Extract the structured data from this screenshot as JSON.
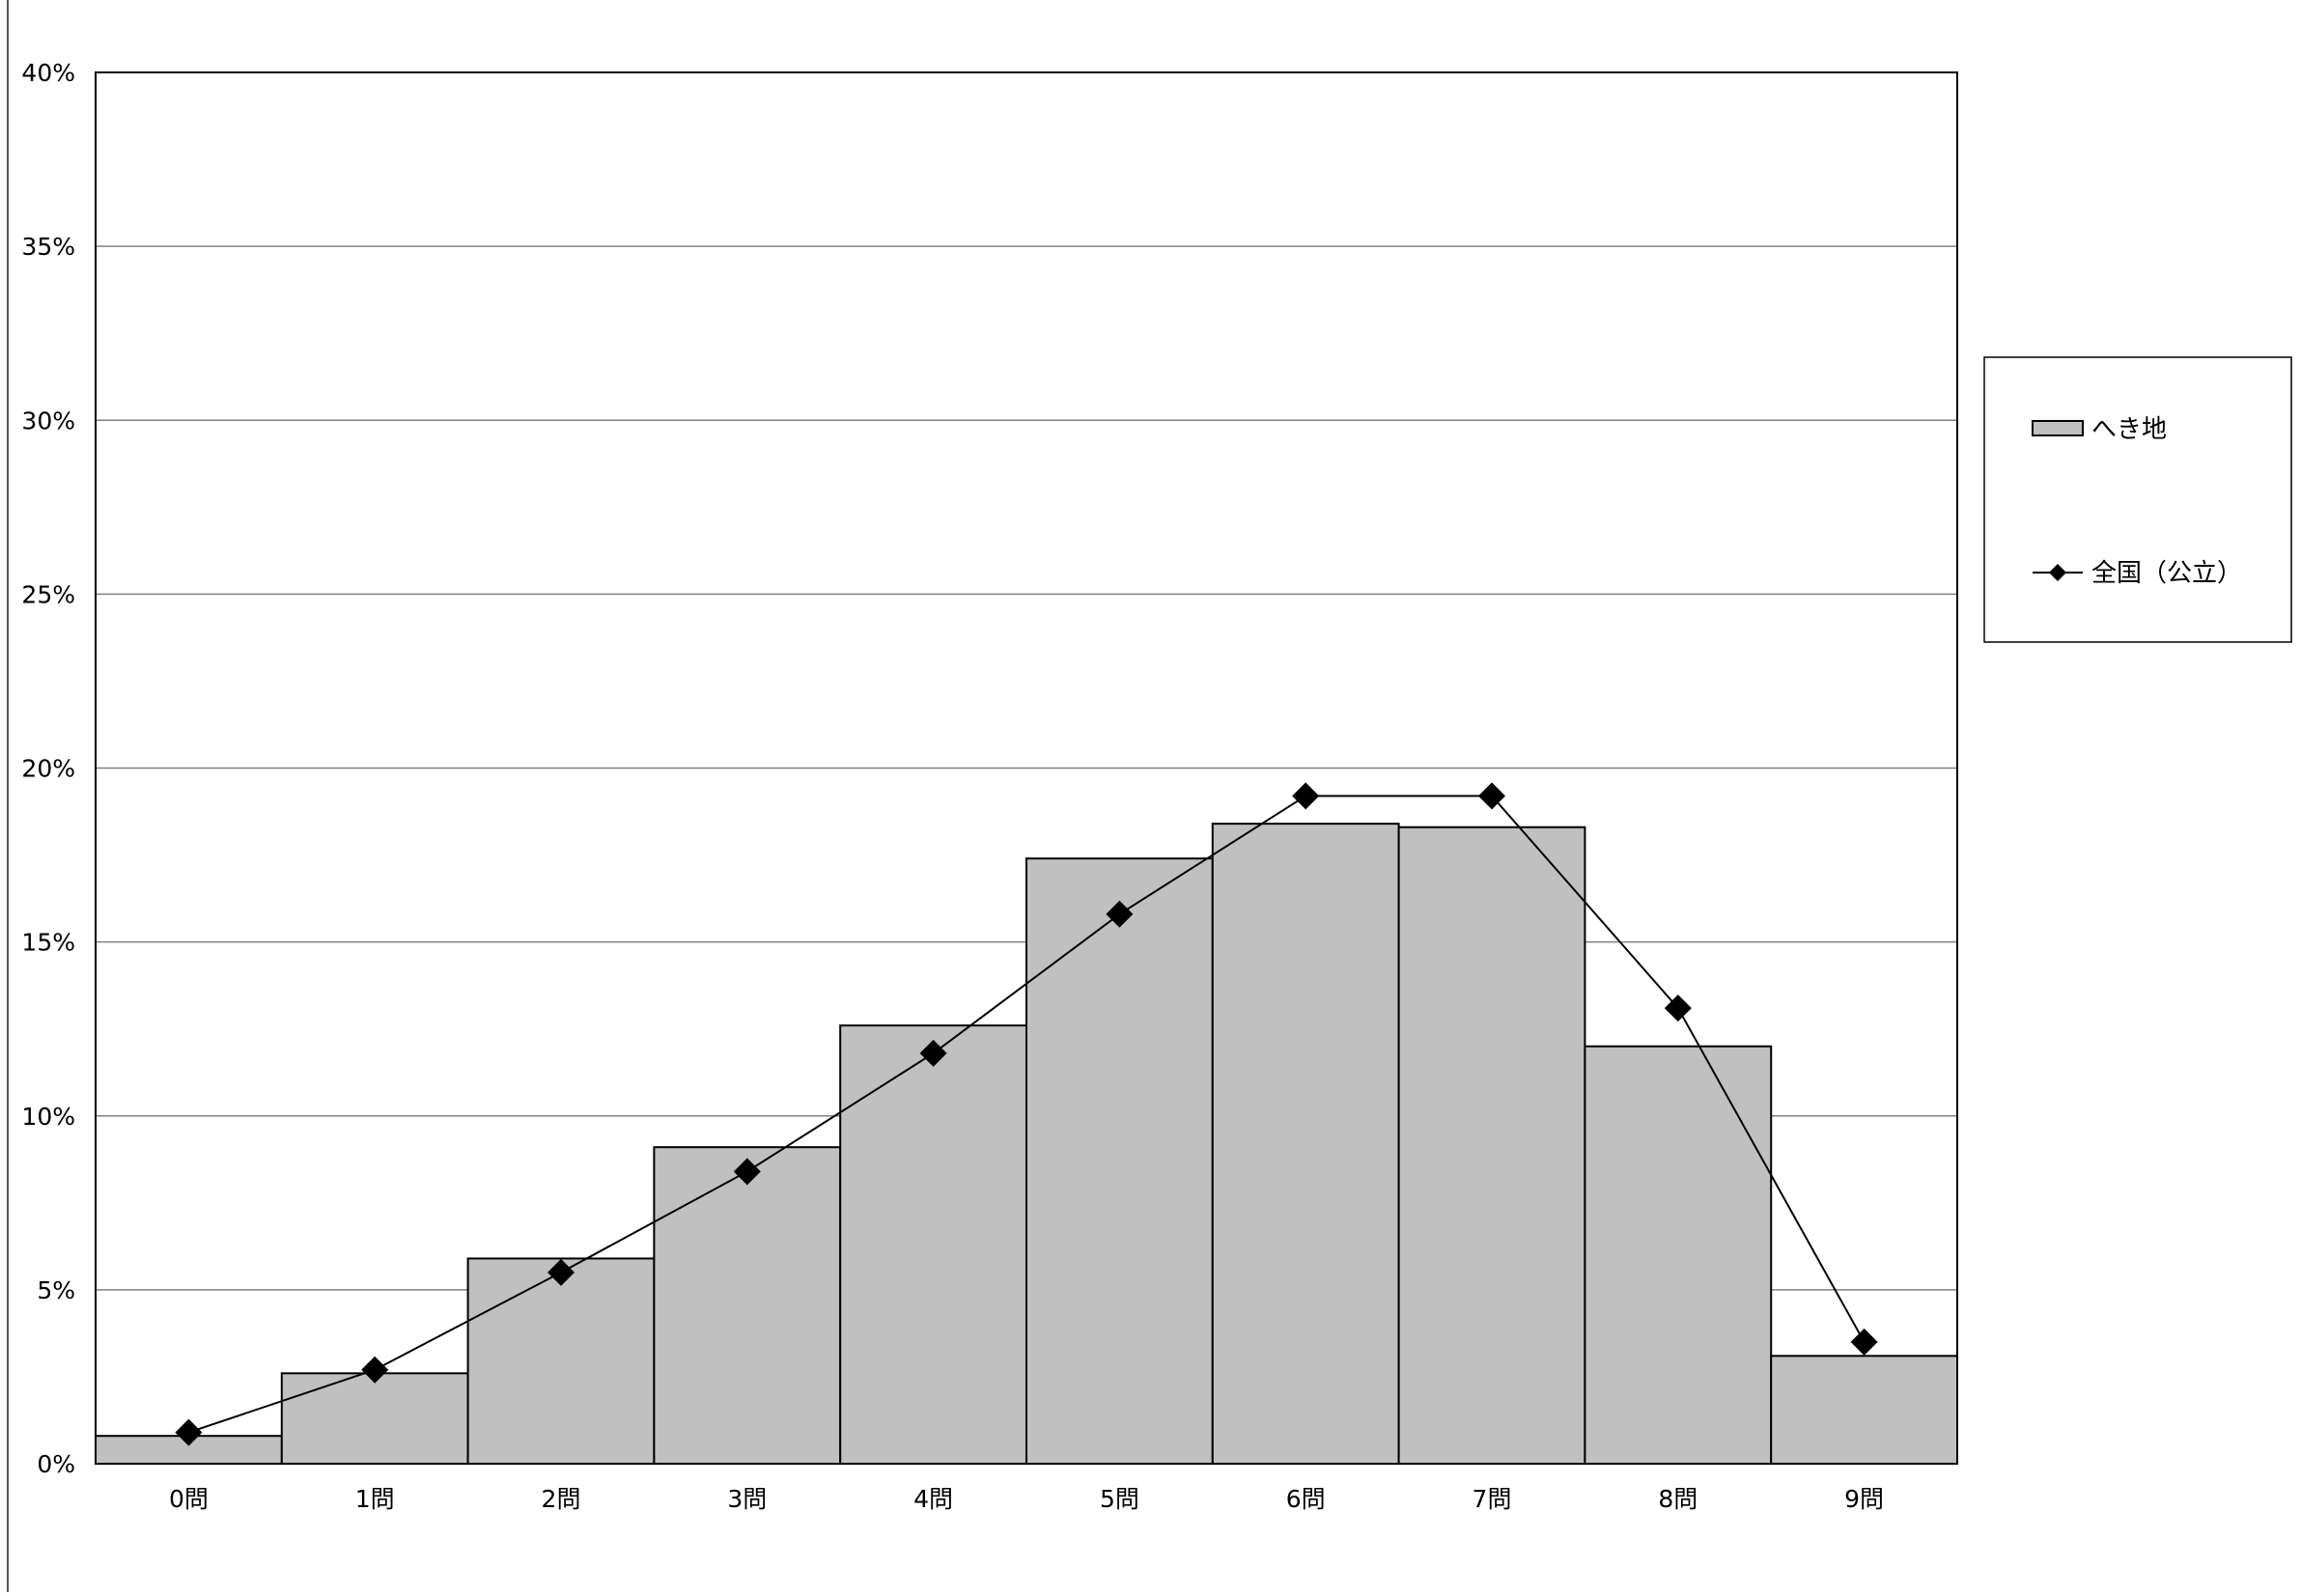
{
  "chart_data": {
    "type": "bar",
    "categories": [
      "0問",
      "1問",
      "2問",
      "3問",
      "4問",
      "5問",
      "6問",
      "7問",
      "8問",
      "9問"
    ],
    "series": [
      {
        "name": "へき地",
        "kind": "bar",
        "values": [
          0.8,
          2.6,
          5.9,
          9.1,
          12.6,
          17.4,
          18.4,
          18.3,
          12.0,
          3.1
        ]
      },
      {
        "name": "全国（公立）",
        "kind": "line",
        "marker": "diamond",
        "values": [
          0.9,
          2.7,
          5.5,
          8.4,
          11.8,
          15.8,
          19.2,
          19.2,
          13.1,
          3.5
        ]
      }
    ],
    "ylim": [
      0,
      40
    ],
    "yticks": [
      0,
      5,
      10,
      15,
      20,
      25,
      30,
      35,
      40
    ],
    "ytick_labels": [
      "0%",
      "5%",
      "10%",
      "15%",
      "20%",
      "25%",
      "30%",
      "35%",
      "40%"
    ],
    "grid": true,
    "legend_position": "right",
    "title": "",
    "xlabel": "",
    "ylabel": "",
    "colors": {
      "bar_fill": "#c0c0c0",
      "bar_stroke": "#000000",
      "line": "#000000",
      "grid": "#808080",
      "axis": "#000000"
    }
  }
}
